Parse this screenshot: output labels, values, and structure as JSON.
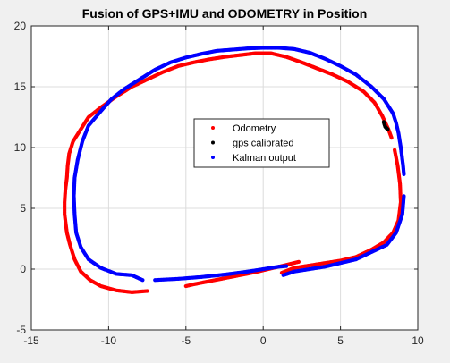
{
  "chart_data": {
    "type": "scatter",
    "title": "Fusion of GPS+IMU and ODOMETRY in Position",
    "xlabel": "",
    "ylabel": "",
    "xlim": [
      -15,
      10
    ],
    "ylim": [
      -5,
      20
    ],
    "xticks": [
      -15,
      -10,
      -5,
      0,
      5,
      10
    ],
    "yticks": [
      -5,
      0,
      5,
      10,
      15,
      20
    ],
    "xtick_labels": [
      "-15",
      "-10",
      "-5",
      "0",
      "5",
      "10"
    ],
    "ytick_labels": [
      "-5",
      "0",
      "5",
      "10",
      "15",
      "20"
    ],
    "grid": true,
    "legend_position": "center",
    "series": [
      {
        "name": "Odometry",
        "color": "#ff0000",
        "segments": [
          [
            [
              2.3,
              0.6
            ],
            [
              1.5,
              0.35
            ],
            [
              0.5,
              0.05
            ],
            [
              -0.5,
              -0.25
            ],
            [
              -1.5,
              -0.5
            ],
            [
              -2.5,
              -0.75
            ],
            [
              -3.5,
              -1.0
            ],
            [
              -4.5,
              -1.25
            ],
            [
              -5.0,
              -1.4
            ]
          ],
          [
            [
              -7.5,
              -1.8
            ],
            [
              -8.5,
              -1.9
            ],
            [
              -9.5,
              -1.75
            ],
            [
              -10.5,
              -1.4
            ],
            [
              -11.2,
              -0.9
            ],
            [
              -11.8,
              -0.2
            ],
            [
              -12.2,
              0.8
            ],
            [
              -12.5,
              2.0
            ],
            [
              -12.7,
              3.0
            ],
            [
              -12.85,
              4.5
            ],
            [
              -12.85,
              5.5
            ],
            [
              -12.8,
              6.5
            ],
            [
              -12.7,
              7.5
            ],
            [
              -12.65,
              8.5
            ],
            [
              -12.55,
              9.5
            ],
            [
              -12.3,
              10.5
            ],
            [
              -11.8,
              11.5
            ],
            [
              -11.3,
              12.5
            ],
            [
              -10.5,
              13.3
            ],
            [
              -9.5,
              14.2
            ],
            [
              -8.5,
              15.0
            ],
            [
              -7.5,
              15.6
            ],
            [
              -6.5,
              16.2
            ],
            [
              -5.5,
              16.7
            ],
            [
              -4.5,
              17.0
            ],
            [
              -3.5,
              17.25
            ],
            [
              -2.5,
              17.45
            ],
            [
              -1.5,
              17.6
            ],
            [
              -0.5,
              17.75
            ],
            [
              0.5,
              17.75
            ],
            [
              1.5,
              17.45
            ],
            [
              2.5,
              17.0
            ],
            [
              3.5,
              16.5
            ],
            [
              4.5,
              16.0
            ],
            [
              5.5,
              15.4
            ],
            [
              6.5,
              14.6
            ],
            [
              7.2,
              13.7
            ],
            [
              7.7,
              12.6
            ],
            [
              8.1,
              11.5
            ],
            [
              8.3,
              10.8
            ]
          ],
          [
            [
              8.5,
              9.8
            ],
            [
              8.7,
              8.5
            ],
            [
              8.85,
              7.0
            ],
            [
              8.9,
              5.5
            ],
            [
              8.75,
              4.0
            ],
            [
              8.4,
              3.0
            ],
            [
              7.8,
              2.2
            ],
            [
              7.0,
              1.6
            ],
            [
              6.0,
              1.0
            ],
            [
              5.0,
              0.7
            ],
            [
              4.0,
              0.5
            ],
            [
              3.0,
              0.3
            ],
            [
              2.0,
              0.1
            ],
            [
              1.2,
              -0.3
            ]
          ]
        ]
      },
      {
        "name": "gps calibrated",
        "color": "#000000",
        "segments": [
          [
            [
              7.8,
              12.1
            ],
            [
              7.9,
              11.7
            ],
            [
              8.05,
              11.5
            ]
          ]
        ]
      },
      {
        "name": "Kalman output",
        "color": "#0000ff",
        "segments": [
          [
            [
              -7.0,
              -0.9
            ],
            [
              -5.5,
              -0.8
            ],
            [
              -4.0,
              -0.65
            ],
            [
              -2.5,
              -0.45
            ],
            [
              -1.0,
              -0.2
            ],
            [
              0.0,
              0.0
            ],
            [
              1.0,
              0.2
            ],
            [
              1.5,
              0.25
            ]
          ],
          [
            [
              -7.8,
              -0.9
            ],
            [
              -8.5,
              -0.5
            ],
            [
              -9.5,
              -0.4
            ],
            [
              -10.5,
              0.1
            ],
            [
              -11.3,
              0.8
            ],
            [
              -11.8,
              1.8
            ],
            [
              -12.1,
              3.0
            ],
            [
              -12.2,
              4.5
            ],
            [
              -12.25,
              6.0
            ],
            [
              -12.2,
              7.5
            ],
            [
              -12.0,
              9.0
            ],
            [
              -11.7,
              10.5
            ],
            [
              -11.3,
              11.8
            ],
            [
              -10.5,
              13.0
            ],
            [
              -9.8,
              14.0
            ],
            [
              -9.0,
              14.8
            ],
            [
              -8.0,
              15.6
            ],
            [
              -7.0,
              16.4
            ],
            [
              -6.0,
              17.0
            ],
            [
              -5.0,
              17.4
            ],
            [
              -4.0,
              17.7
            ],
            [
              -3.0,
              17.95
            ],
            [
              -2.0,
              18.05
            ],
            [
              -1.0,
              18.15
            ],
            [
              0.0,
              18.2
            ],
            [
              1.0,
              18.2
            ],
            [
              2.0,
              18.1
            ],
            [
              3.0,
              17.8
            ],
            [
              4.0,
              17.3
            ],
            [
              5.0,
              16.7
            ],
            [
              6.0,
              16.0
            ],
            [
              7.0,
              15.0
            ],
            [
              7.8,
              14.0
            ],
            [
              8.4,
              12.8
            ],
            [
              8.6,
              12.0
            ],
            [
              8.75,
              11.2
            ],
            [
              8.9,
              10.0
            ],
            [
              9.05,
              8.5
            ],
            [
              9.1,
              7.8
            ]
          ],
          [
            [
              9.1,
              6.0
            ],
            [
              9.0,
              4.5
            ],
            [
              8.6,
              3.0
            ],
            [
              8.0,
              2.0
            ],
            [
              7.0,
              1.4
            ],
            [
              6.0,
              0.8
            ],
            [
              5.0,
              0.5
            ],
            [
              4.0,
              0.2
            ],
            [
              3.0,
              0.0
            ],
            [
              2.0,
              -0.2
            ],
            [
              1.3,
              -0.5
            ]
          ]
        ]
      }
    ]
  }
}
